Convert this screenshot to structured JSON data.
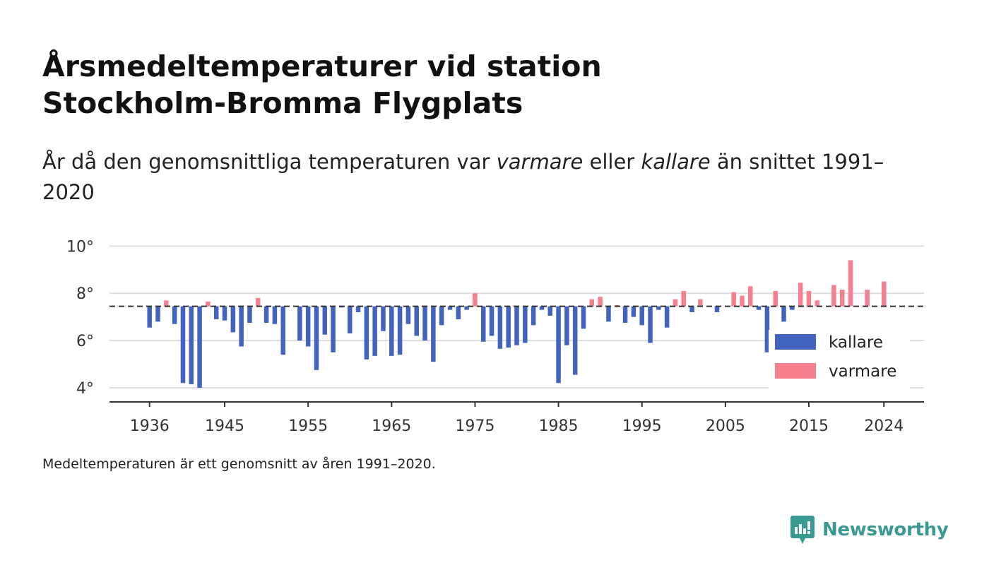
{
  "title": {
    "line1": "Årsmedeltemperaturer vid station",
    "line2": "Stockholm-Bromma Flygplats"
  },
  "subtitle": {
    "prefix": "År då den genomsnittliga temperaturen var",
    "warm_word": "varmare",
    "middle": "eller",
    "cold_word": "kallare",
    "suffix": "än snittet 1991–2020"
  },
  "footnote": "Medeltemperaturen är ett genomsnitt av åren 1991–2020.",
  "brand": {
    "name": "Newsworthy",
    "color": "#3a9a93"
  },
  "colors": {
    "cold": "#4263bf",
    "warm": "#f7808f",
    "baseline": "#333333",
    "grid": "#dddddd"
  },
  "chart_data": {
    "type": "bar",
    "baseline": 7.45,
    "x_ticks": [
      1936,
      1945,
      1955,
      1965,
      1975,
      1985,
      1995,
      2005,
      2015,
      2024
    ],
    "y_ticks": [
      4,
      6,
      8,
      10
    ],
    "y_tick_labels": [
      "4°",
      "6°",
      "8°",
      "10°"
    ],
    "ylim": [
      3.4,
      10.4
    ],
    "xlim": [
      1931.2,
      2028.8
    ],
    "legend": {
      "cold": "kallare",
      "warm": "varmare",
      "placement": "right"
    },
    "years": [
      1936,
      1937,
      1938,
      1939,
      1940,
      1941,
      1942,
      1943,
      1944,
      1945,
      1946,
      1947,
      1948,
      1949,
      1950,
      1951,
      1952,
      1953,
      1954,
      1955,
      1956,
      1957,
      1958,
      1959,
      1960,
      1961,
      1962,
      1963,
      1964,
      1965,
      1966,
      1967,
      1968,
      1969,
      1970,
      1971,
      1972,
      1973,
      1974,
      1975,
      1976,
      1977,
      1978,
      1979,
      1980,
      1981,
      1982,
      1983,
      1984,
      1985,
      1986,
      1987,
      1988,
      1989,
      1990,
      1991,
      1992,
      1993,
      1994,
      1995,
      1996,
      1997,
      1998,
      1999,
      2000,
      2001,
      2002,
      2003,
      2004,
      2005,
      2006,
      2007,
      2008,
      2009,
      2010,
      2011,
      2012,
      2013,
      2014,
      2015,
      2016,
      2017,
      2018,
      2019,
      2020,
      2021,
      2022,
      2023,
      2024
    ],
    "values": [
      6.55,
      6.8,
      7.7,
      6.7,
      4.2,
      4.15,
      4.0,
      7.65,
      6.9,
      6.85,
      6.35,
      5.75,
      6.75,
      7.8,
      6.75,
      6.7,
      5.4,
      7.45,
      6.0,
      5.75,
      4.75,
      6.25,
      5.5,
      7.4,
      6.3,
      7.2,
      5.2,
      5.35,
      6.4,
      5.35,
      5.4,
      6.7,
      6.2,
      6.0,
      5.1,
      6.65,
      7.3,
      6.9,
      7.3,
      8.0,
      5.95,
      6.2,
      5.65,
      5.7,
      5.8,
      5.9,
      6.65,
      7.3,
      7.05,
      4.2,
      5.8,
      4.55,
      6.5,
      7.75,
      7.85,
      6.8,
      7.5,
      6.75,
      7.0,
      6.65,
      5.9,
      7.3,
      6.55,
      7.75,
      8.1,
      7.2,
      7.75,
      7.45,
      7.2,
      7.45,
      8.05,
      7.9,
      8.3,
      7.3,
      5.5,
      8.1,
      6.8,
      7.3,
      8.45,
      8.1,
      7.7,
      7.45,
      8.35,
      8.15,
      9.4,
      7.45,
      8.15,
      7.45,
      8.5
    ]
  }
}
